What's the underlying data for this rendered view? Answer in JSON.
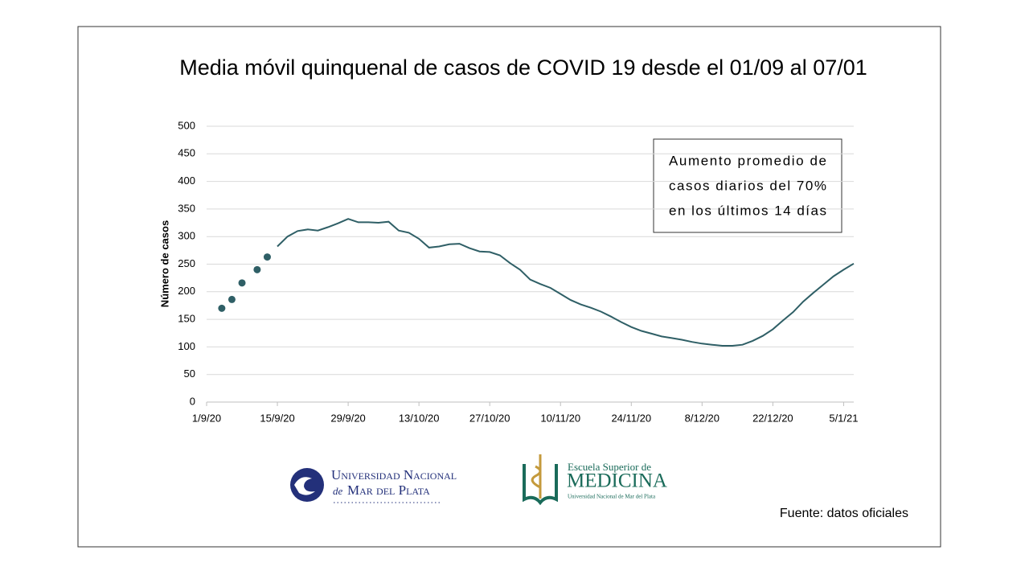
{
  "chart_data": {
    "type": "line",
    "title": "Media móvil quinquenal de casos de COVID 19 desde el 01/09 al 07/01",
    "y_label": "Número de casos",
    "color": "#2f5f66",
    "x": [
      14,
      16,
      18,
      20,
      22,
      24,
      26,
      28,
      30,
      32,
      34,
      36,
      38,
      40,
      42,
      44,
      46,
      48,
      50,
      52,
      54,
      56,
      58,
      60,
      62,
      64,
      66,
      68,
      70,
      72,
      74,
      76,
      78,
      80,
      82,
      84,
      86,
      88,
      90,
      92,
      94,
      96,
      98,
      100,
      102,
      104,
      106,
      108,
      110,
      112,
      114,
      116,
      118,
      120,
      122,
      124,
      126,
      128
    ],
    "values": [
      282,
      300,
      310,
      313,
      311,
      317,
      324,
      332,
      326,
      326,
      325,
      327,
      311,
      307,
      296,
      280,
      282,
      286,
      287,
      279,
      273,
      272,
      266,
      252,
      240,
      222,
      214,
      207,
      196,
      185,
      177,
      171,
      164,
      155,
      145,
      136,
      129,
      124,
      119,
      116,
      113,
      109,
      106,
      104,
      102,
      102,
      104,
      111,
      120,
      132,
      148,
      163,
      182,
      198,
      213,
      228,
      240,
      251
    ],
    "markers": {
      "x": [
        3,
        5,
        7,
        10,
        12
      ],
      "values": [
        170,
        186,
        216,
        240,
        263
      ]
    },
    "xlim": [
      0,
      128
    ],
    "xticks": [
      {
        "value": 0,
        "label": "1/9/20"
      },
      {
        "value": 14,
        "label": "15/9/20"
      },
      {
        "value": 28,
        "label": "29/9/20"
      },
      {
        "value": 42,
        "label": "13/10/20"
      },
      {
        "value": 56,
        "label": "27/10/20"
      },
      {
        "value": 70,
        "label": "10/11/20"
      },
      {
        "value": 84,
        "label": "24/11/20"
      },
      {
        "value": 98,
        "label": "8/12/20"
      },
      {
        "value": 112,
        "label": "22/12/20"
      },
      {
        "value": 126,
        "label": "5/1/21"
      }
    ],
    "ylim": [
      0,
      500
    ],
    "yticks": [
      0,
      50,
      100,
      150,
      200,
      250,
      300,
      350,
      400,
      450,
      500
    ],
    "grid": true,
    "annotation": [
      "Aumento promedio de",
      "casos diarios del 70%",
      "en los últimos 14 días"
    ],
    "source": "Fuente: datos oficiales"
  },
  "logos": {
    "unmdp": [
      "Universidad Nacional",
      "de",
      "Mar del Plata"
    ],
    "medicina": [
      "Escuela Superior de",
      "MEDICINA",
      "Universidad Nacional de Mar del Plata"
    ]
  }
}
